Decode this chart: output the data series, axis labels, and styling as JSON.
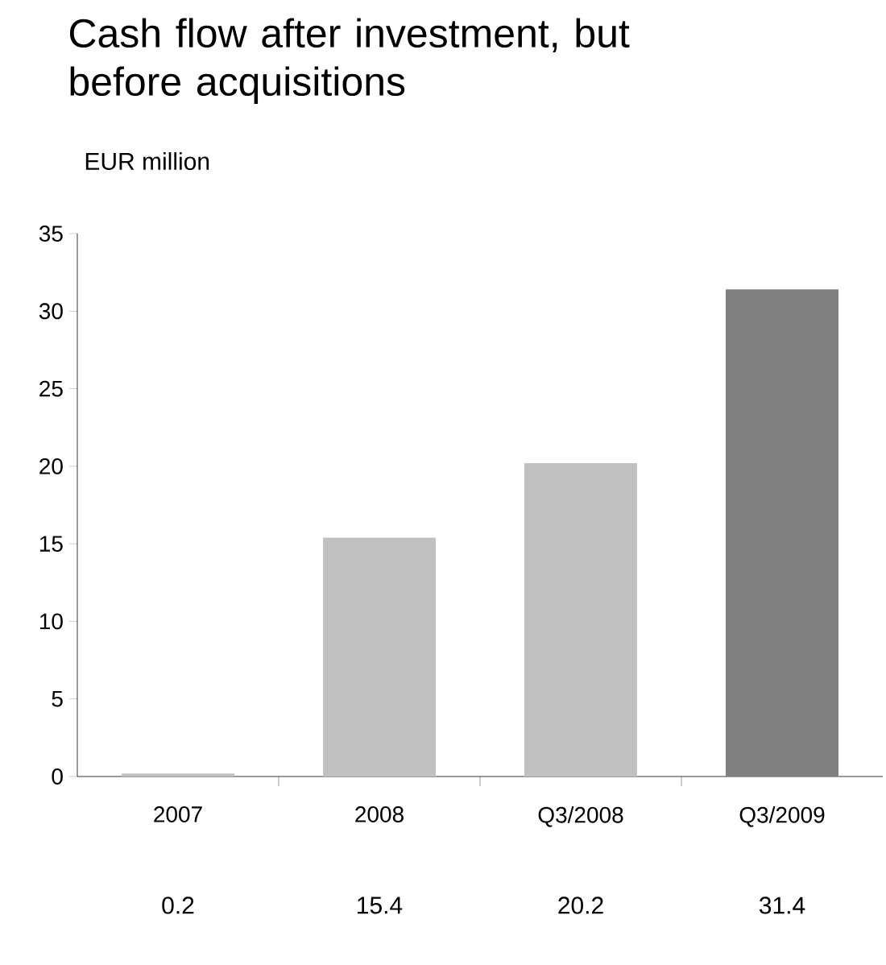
{
  "chart_data": {
    "type": "bar",
    "title": "Cash flow after investment, but before acquisitions",
    "ylabel": "EUR million",
    "categories": [
      "2007",
      "2008",
      "Q3/2008",
      "Q3/2009"
    ],
    "values": [
      0.2,
      15.4,
      20.2,
      31.4
    ],
    "colors": [
      "#c0c0c0",
      "#c0c0c0",
      "#c0c0c0",
      "#808080"
    ],
    "ylim": [
      0,
      35
    ],
    "yticks": [
      0,
      5,
      10,
      15,
      20,
      25,
      30,
      35
    ],
    "data_labels": true
  }
}
